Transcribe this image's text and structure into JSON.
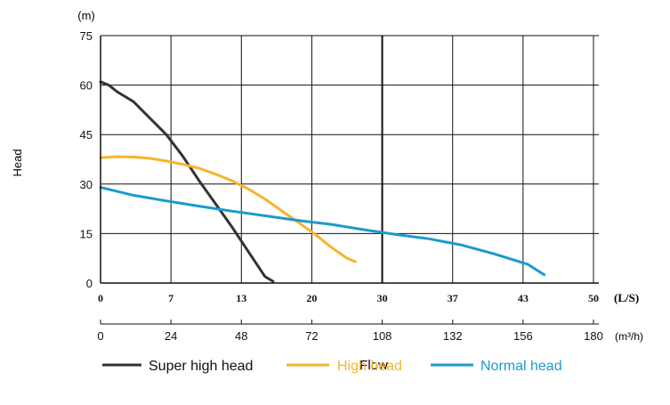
{
  "chart_data": {
    "type": "line",
    "title": "",
    "ylabel": "Head",
    "y_unit": "(m)",
    "xlabel": "Flow",
    "ylim": [
      0,
      75
    ],
    "yticks": [
      "0",
      "15",
      "30",
      "45",
      "60",
      "75"
    ],
    "x_axis_ls": {
      "unit": "(L/S)",
      "ticks": [
        "0",
        "7",
        "13",
        "20",
        "30",
        "37",
        "43",
        "50"
      ]
    },
    "x_axis_m3h": {
      "unit": "(m³/h)",
      "ticks": [
        "0",
        "24",
        "48",
        "72",
        "108",
        "132",
        "156",
        "180"
      ]
    },
    "xlim_m3h": [
      0,
      180
    ],
    "grid": true,
    "legend_position": "bottom",
    "series": [
      {
        "name": "Super high head",
        "color": "#333333",
        "x": [
          0,
          3,
          6,
          12,
          18,
          24,
          30,
          36,
          42,
          48,
          54,
          60,
          63
        ],
        "y": [
          61,
          60,
          58,
          55,
          50,
          45,
          38.5,
          31,
          24,
          17,
          9.5,
          2,
          0.5
        ]
      },
      {
        "name": "High head",
        "color": "#f7b42c",
        "x": [
          0,
          6,
          12,
          18,
          24,
          30,
          36,
          42,
          48,
          54,
          60,
          66,
          72,
          78,
          84,
          90,
          93
        ],
        "y": [
          38,
          38.3,
          38.2,
          37.8,
          37,
          36,
          34.8,
          33,
          31,
          28.5,
          25.5,
          22,
          18.5,
          15,
          11,
          7.5,
          6.5
        ]
      },
      {
        "name": "Normal head",
        "color": "#1a9bcc",
        "x": [
          0,
          12,
          24,
          36,
          48,
          60,
          72,
          84,
          96,
          108,
          120,
          132,
          144,
          156,
          162
        ],
        "y": [
          29,
          26.6,
          24.9,
          23.3,
          21.8,
          20.4,
          19,
          17.8,
          16.2,
          14.7,
          13.4,
          11.5,
          8.8,
          5.7,
          2.5
        ]
      }
    ]
  }
}
